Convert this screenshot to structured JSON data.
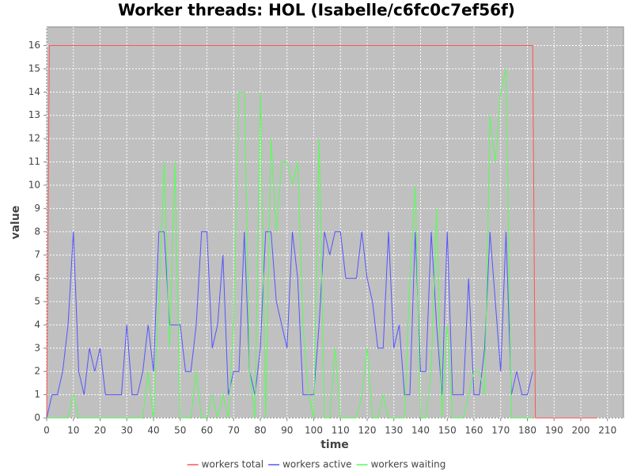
{
  "chart_data": {
    "type": "line",
    "title": "Worker threads: HOL (Isabelle/c6fc0c7ef56f)",
    "x_label": "time",
    "y_label": "value",
    "xlim": [
      0,
      216
    ],
    "ylim": [
      0,
      16.8
    ],
    "xticks": [
      0,
      10,
      20,
      30,
      40,
      50,
      60,
      70,
      80,
      90,
      100,
      110,
      120,
      130,
      140,
      150,
      160,
      170,
      180,
      190,
      200,
      210
    ],
    "yticks": [
      0,
      1,
      2,
      3,
      4,
      5,
      6,
      7,
      8,
      9,
      10,
      11,
      12,
      13,
      14,
      15,
      16
    ],
    "grid": true,
    "legend": "bottom",
    "series": [
      {
        "name": "workers total",
        "color": "#ff5555",
        "x": [
          0,
          1,
          182,
          183,
          206
        ],
        "values": [
          0,
          16,
          16,
          0,
          0
        ]
      },
      {
        "name": "workers active",
        "color": "#5555ff",
        "x": [
          0,
          2,
          4,
          6,
          8,
          10,
          12,
          14,
          16,
          18,
          20,
          22,
          24,
          26,
          28,
          30,
          32,
          34,
          36,
          38,
          40,
          42,
          44,
          46,
          48,
          50,
          52,
          54,
          56,
          58,
          60,
          62,
          64,
          66,
          68,
          70,
          72,
          74,
          76,
          78,
          80,
          82,
          84,
          86,
          88,
          90,
          92,
          94,
          96,
          98,
          100,
          102,
          104,
          106,
          108,
          110,
          112,
          114,
          116,
          118,
          120,
          122,
          124,
          126,
          128,
          130,
          132,
          134,
          136,
          138,
          140,
          142,
          144,
          146,
          148,
          150,
          152,
          154,
          156,
          158,
          160,
          162,
          164,
          166,
          168,
          170,
          172,
          174,
          176,
          178,
          180,
          182
        ],
        "values": [
          0,
          1,
          1,
          2,
          4,
          8,
          2,
          1,
          3,
          2,
          3,
          1,
          1,
          1,
          1,
          4,
          1,
          1,
          2,
          4,
          2,
          8,
          8,
          4,
          4,
          4,
          2,
          2,
          4,
          8,
          8,
          3,
          4,
          7,
          1,
          2,
          2,
          8,
          2,
          1,
          3,
          8,
          8,
          5,
          4,
          3,
          8,
          6,
          1,
          1,
          1,
          4,
          8,
          7,
          8,
          8,
          6,
          6,
          6,
          8,
          6,
          5,
          3,
          3,
          8,
          3,
          4,
          1,
          1,
          8,
          2,
          2,
          8,
          4,
          1,
          8,
          1,
          1,
          1,
          6,
          1,
          1,
          3,
          8,
          5,
          2,
          8,
          1,
          2,
          1,
          1,
          2
        ]
      },
      {
        "name": "workers waiting",
        "color": "#55ff55",
        "x": [
          0,
          2,
          4,
          6,
          8,
          10,
          12,
          14,
          16,
          18,
          20,
          22,
          24,
          26,
          28,
          30,
          32,
          34,
          36,
          38,
          40,
          42,
          44,
          46,
          48,
          50,
          52,
          54,
          56,
          58,
          60,
          62,
          64,
          66,
          68,
          70,
          72,
          74,
          76,
          78,
          80,
          82,
          84,
          86,
          88,
          90,
          92,
          94,
          96,
          98,
          100,
          102,
          104,
          106,
          108,
          110,
          112,
          114,
          116,
          118,
          120,
          122,
          124,
          126,
          128,
          130,
          132,
          134,
          136,
          138,
          140,
          142,
          144,
          146,
          148,
          150,
          152,
          154,
          156,
          158,
          160,
          162,
          164,
          166,
          168,
          170,
          172,
          174,
          176,
          178,
          180,
          182
        ],
        "values": [
          0,
          0,
          0,
          0,
          0,
          1,
          0,
          0,
          0,
          0,
          0,
          0,
          0,
          0,
          0,
          0,
          0,
          0,
          0,
          2,
          0,
          5,
          11,
          3,
          11,
          0,
          0,
          0,
          2,
          0,
          0,
          1,
          0,
          1,
          0,
          4,
          14,
          14,
          2,
          0,
          14,
          0,
          12,
          8,
          11,
          11,
          10,
          11,
          4,
          1,
          0,
          12,
          0,
          0,
          3,
          0,
          0,
          0,
          0,
          1,
          3,
          0,
          0,
          1,
          0,
          0,
          0,
          0,
          6,
          10,
          0,
          0,
          2,
          9,
          0,
          4,
          0,
          0,
          0,
          1,
          2,
          2,
          1,
          13,
          11,
          14,
          15,
          0,
          0,
          0,
          0,
          0
        ]
      }
    ]
  }
}
